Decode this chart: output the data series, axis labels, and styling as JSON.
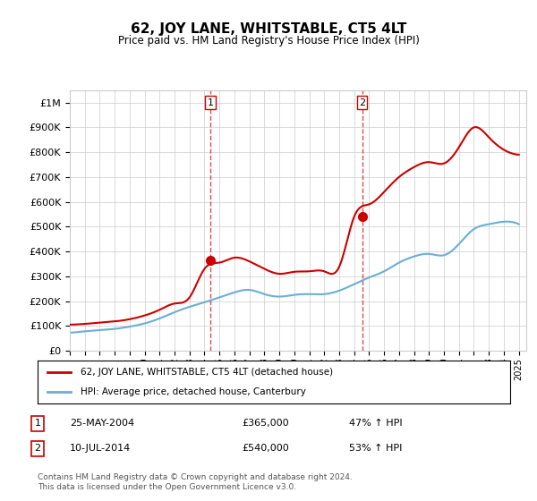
{
  "title": "62, JOY LANE, WHITSTABLE, CT5 4LT",
  "subtitle": "Price paid vs. HM Land Registry's House Price Index (HPI)",
  "ylabel_ticks": [
    "£0",
    "£100K",
    "£200K",
    "£300K",
    "£400K",
    "£500K",
    "£600K",
    "£700K",
    "£800K",
    "£900K",
    "£1M"
  ],
  "ytick_vals": [
    0,
    100000,
    200000,
    300000,
    400000,
    500000,
    600000,
    700000,
    800000,
    900000,
    1000000
  ],
  "ylim": [
    0,
    1050000
  ],
  "xlim_start": 1995.0,
  "xlim_end": 2025.5,
  "hpi_color": "#6baed6",
  "price_color": "#cc0000",
  "vline_color": "#cc0000",
  "sale1_x": 2004.4,
  "sale1_y": 365000,
  "sale2_x": 2014.53,
  "sale2_y": 540000,
  "legend_label1": "62, JOY LANE, WHITSTABLE, CT5 4LT (detached house)",
  "legend_label2": "HPI: Average price, detached house, Canterbury",
  "table_row1_num": "1",
  "table_row1_date": "25-MAY-2004",
  "table_row1_price": "£365,000",
  "table_row1_hpi": "47% ↑ HPI",
  "table_row2_num": "2",
  "table_row2_date": "10-JUL-2014",
  "table_row2_price": "£540,000",
  "table_row2_hpi": "53% ↑ HPI",
  "footer": "Contains HM Land Registry data © Crown copyright and database right 2024.\nThis data is licensed under the Open Government Licence v3.0.",
  "bg_color": "#ffffff",
  "grid_color": "#cccccc",
  "x_years": [
    1995,
    1996,
    1997,
    1998,
    1999,
    2000,
    2001,
    2002,
    2003,
    2004,
    2005,
    2006,
    2007,
    2008,
    2009,
    2010,
    2011,
    2012,
    2013,
    2014,
    2015,
    2016,
    2017,
    2018,
    2019,
    2020,
    2021,
    2022,
    2023,
    2024,
    2025
  ],
  "hpi_values": [
    72000,
    78000,
    83000,
    88000,
    97000,
    110000,
    130000,
    155000,
    177000,
    195000,
    215000,
    235000,
    245000,
    228000,
    218000,
    225000,
    228000,
    228000,
    242000,
    268000,
    295000,
    320000,
    355000,
    380000,
    390000,
    385000,
    430000,
    490000,
    510000,
    520000,
    510000
  ],
  "price_values": [
    105000,
    108000,
    113000,
    118000,
    127000,
    142000,
    165000,
    190000,
    215000,
    330000,
    355000,
    375000,
    360000,
    330000,
    310000,
    318000,
    320000,
    320000,
    338000,
    540000,
    590000,
    640000,
    700000,
    740000,
    760000,
    755000,
    820000,
    900000,
    860000,
    810000,
    790000
  ]
}
